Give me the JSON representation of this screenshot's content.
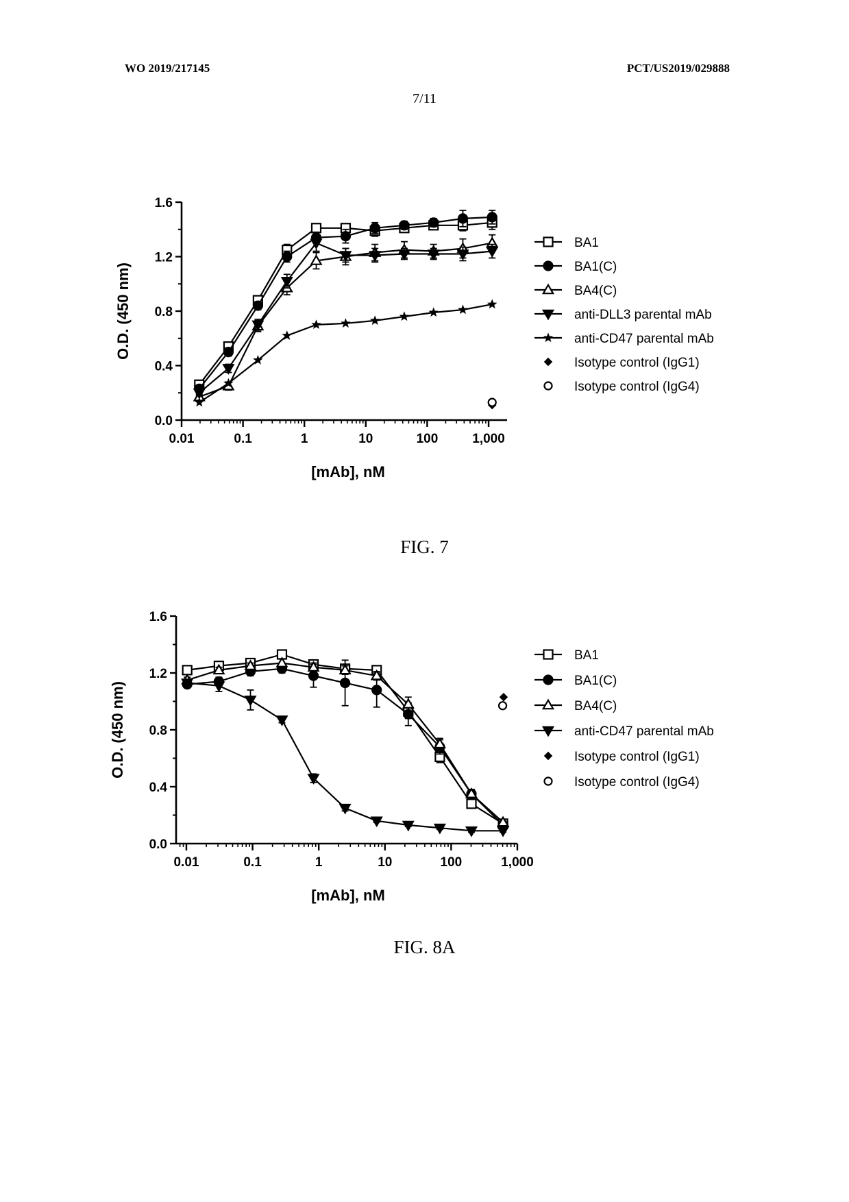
{
  "header": {
    "left": "WO 2019/217145",
    "right": "PCT/US2019/029888",
    "page": "7/11"
  },
  "figures": [
    {
      "caption": "FIG. 7"
    },
    {
      "caption": "FIG. 8A"
    }
  ],
  "chart_data": [
    {
      "type": "scatter",
      "title": "",
      "xlabel": "[mAb], nM",
      "ylabel": "O.D. (450 nm)",
      "xscale": "log",
      "xlim": [
        0.01,
        2000
      ],
      "ylim": [
        0,
        1.6
      ],
      "xticks": [
        0.01,
        0.1,
        1,
        10,
        100,
        1000
      ],
      "xtick_labels": [
        "0.01",
        "0.1",
        "1",
        "10",
        "100",
        "1,000"
      ],
      "yticks": [
        0,
        0.4,
        0.8,
        1.2,
        1.6
      ],
      "ytick_labels": [
        "0.0",
        "0.4",
        "0.8",
        "1.2",
        "1.6"
      ],
      "grid": false,
      "legend_position": "right",
      "series": [
        {
          "name": "BA1",
          "marker": "square-open",
          "line": true,
          "x": [
            0.0194,
            0.058,
            0.175,
            0.52,
            1.56,
            4.7,
            14.1,
            42.3,
            127,
            381,
            1143
          ],
          "y": [
            0.26,
            0.54,
            0.88,
            1.25,
            1.41,
            1.41,
            1.39,
            1.41,
            1.43,
            1.43,
            1.45
          ],
          "err": [
            0.02,
            0.03,
            0.03,
            0.04,
            0.03,
            0.03,
            0.04,
            0.03,
            0.03,
            0.04,
            0.05
          ]
        },
        {
          "name": "BA1(C)",
          "marker": "circle-filled",
          "line": true,
          "x": [
            0.0194,
            0.058,
            0.175,
            0.52,
            1.56,
            4.7,
            14.1,
            42.3,
            127,
            381,
            1143
          ],
          "y": [
            0.23,
            0.5,
            0.84,
            1.2,
            1.34,
            1.35,
            1.41,
            1.43,
            1.45,
            1.48,
            1.49
          ],
          "err": [
            0.02,
            0.03,
            0.03,
            0.04,
            0.04,
            0.05,
            0.04,
            0.03,
            0.03,
            0.06,
            0.05
          ]
        },
        {
          "name": "BA4(C)",
          "marker": "triangle-open",
          "line": true,
          "x": [
            0.0194,
            0.058,
            0.175,
            0.52,
            1.56,
            4.7,
            14.1,
            42.3,
            127,
            381,
            1143
          ],
          "y": [
            0.17,
            0.25,
            0.69,
            0.97,
            1.17,
            1.2,
            1.23,
            1.25,
            1.24,
            1.26,
            1.3
          ],
          "err": [
            0.02,
            0.03,
            0.04,
            0.05,
            0.06,
            0.06,
            0.06,
            0.06,
            0.05,
            0.07,
            0.06
          ]
        },
        {
          "name": "anti-DLL3 parental mAb",
          "marker": "triangle-down-filled",
          "line": true,
          "x": [
            0.0194,
            0.058,
            0.175,
            0.52,
            1.56,
            4.7,
            14.1,
            42.3,
            127,
            381,
            1143
          ],
          "y": [
            0.2,
            0.38,
            0.7,
            1.02,
            1.3,
            1.21,
            1.21,
            1.22,
            1.22,
            1.22,
            1.24
          ],
          "err": [
            0.02,
            0.03,
            0.04,
            0.05,
            0.06,
            0.05,
            0.05,
            0.04,
            0.04,
            0.05,
            0.05
          ]
        },
        {
          "name": "anti-CD47 parental mAb",
          "marker": "star-filled",
          "line": true,
          "x": [
            0.0194,
            0.058,
            0.175,
            0.52,
            1.56,
            4.7,
            14.1,
            42.3,
            127,
            381,
            1143
          ],
          "y": [
            0.13,
            0.27,
            0.44,
            0.62,
            0.7,
            0.71,
            0.73,
            0.76,
            0.79,
            0.81,
            0.85
          ],
          "err": [
            0,
            0,
            0,
            0,
            0,
            0,
            0,
            0,
            0,
            0,
            0
          ]
        },
        {
          "name": "Isotype control (IgG1)",
          "marker": "diamond-filled",
          "line": false,
          "x": [
            1143
          ],
          "y": [
            0.11
          ],
          "err": [
            0
          ]
        },
        {
          "name": "Isotype control (IgG4)",
          "marker": "circle-open",
          "line": false,
          "x": [
            1143
          ],
          "y": [
            0.13
          ],
          "err": [
            0
          ]
        }
      ]
    },
    {
      "type": "scatter",
      "title": "",
      "xlabel": "[mAb], nM",
      "ylabel": "O.D. (450 nm)",
      "xscale": "log",
      "xlim": [
        0.007,
        1000
      ],
      "ylim": [
        0,
        1.6
      ],
      "xticks": [
        0.01,
        0.1,
        1,
        10,
        100,
        1000
      ],
      "xtick_labels": [
        "0.01",
        "0.1",
        "1",
        "10",
        "100",
        "1,000"
      ],
      "yticks": [
        0,
        0.4,
        0.8,
        1.2,
        1.6
      ],
      "ytick_labels": [
        "0.0",
        "0.4",
        "0.8",
        "1.2",
        "1.6"
      ],
      "grid": false,
      "legend_position": "right",
      "series": [
        {
          "name": "BA1",
          "marker": "square-open",
          "line": true,
          "x": [
            0.0103,
            0.031,
            0.093,
            0.278,
            0.833,
            2.5,
            7.5,
            22.5,
            67.5,
            202.5,
            607.5
          ],
          "y": [
            1.22,
            1.25,
            1.27,
            1.33,
            1.26,
            1.23,
            1.22,
            0.93,
            0.61,
            0.28,
            0.14
          ],
          "err": [
            0.02,
            0.02,
            0.02,
            0.03,
            0.03,
            0.03,
            0.03,
            0.05,
            0.04,
            0.03,
            0.02
          ]
        },
        {
          "name": "BA1(C)",
          "marker": "circle-filled",
          "line": true,
          "x": [
            0.0103,
            0.031,
            0.093,
            0.278,
            0.833,
            2.5,
            7.5,
            22.5,
            67.5,
            202.5,
            607.5
          ],
          "y": [
            1.12,
            1.14,
            1.21,
            1.23,
            1.18,
            1.13,
            1.08,
            0.91,
            0.68,
            0.35,
            0.13
          ],
          "err": [
            0.02,
            0.03,
            0.03,
            0.03,
            0.08,
            0.16,
            0.12,
            0.08,
            0.05,
            0.03,
            0.02
          ]
        },
        {
          "name": "BA4(C)",
          "marker": "triangle-open",
          "line": true,
          "x": [
            0.0103,
            0.031,
            0.093,
            0.278,
            0.833,
            2.5,
            7.5,
            22.5,
            67.5,
            202.5,
            607.5
          ],
          "y": [
            1.15,
            1.22,
            1.25,
            1.27,
            1.24,
            1.22,
            1.18,
            0.98,
            0.7,
            0.35,
            0.15
          ],
          "err": [
            0.02,
            0.02,
            0.02,
            0.03,
            0.03,
            0.03,
            0.03,
            0.05,
            0.04,
            0.03,
            0.02
          ]
        },
        {
          "name": "anti-CD47 parental mAb",
          "marker": "triangle-down-filled",
          "line": true,
          "x": [
            0.0103,
            0.031,
            0.093,
            0.278,
            0.833,
            2.5,
            7.5,
            22.5,
            67.5,
            202.5,
            607.5
          ],
          "y": [
            1.13,
            1.11,
            1.01,
            0.87,
            0.46,
            0.25,
            0.16,
            0.13,
            0.11,
            0.09,
            0.09
          ],
          "err": [
            0.02,
            0.04,
            0.07,
            0.02,
            0.03,
            0.02,
            0.01,
            0.01,
            0.01,
            0.01,
            0.01
          ]
        },
        {
          "name": "Isotype control (IgG1)",
          "marker": "diamond-filled",
          "line": false,
          "x": [
            620
          ],
          "y": [
            1.03
          ],
          "err": [
            0
          ]
        },
        {
          "name": "Isotype control (IgG4)",
          "marker": "circle-open",
          "line": false,
          "x": [
            600
          ],
          "y": [
            0.97
          ],
          "err": [
            0
          ]
        }
      ]
    }
  ]
}
